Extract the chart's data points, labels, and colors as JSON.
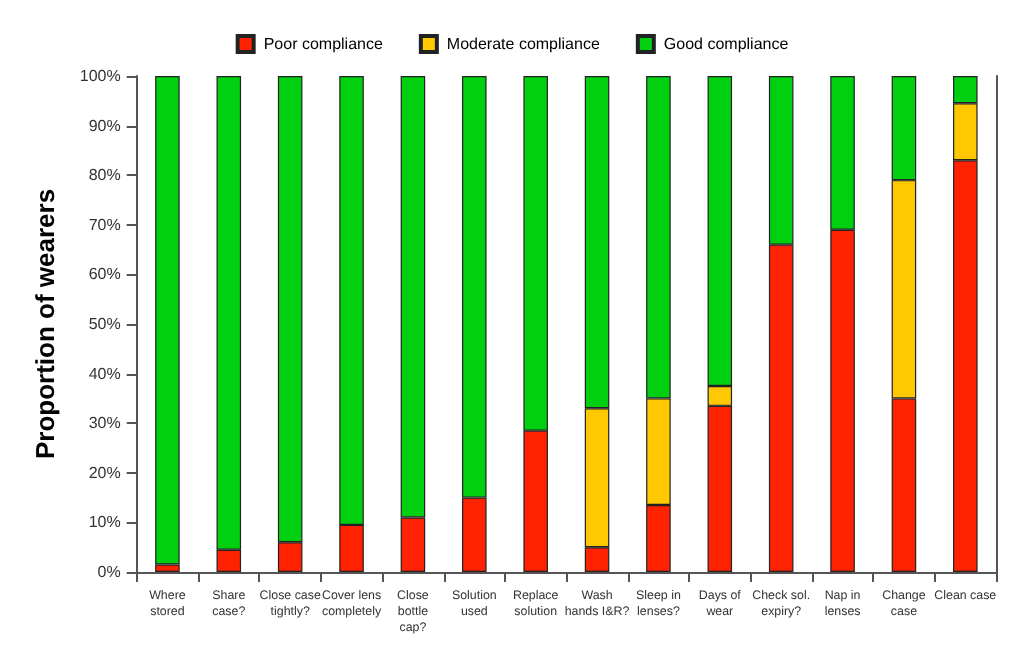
{
  "chart_data": {
    "type": "bar",
    "stacked": true,
    "ylabel": "Proportion of wearers",
    "legend": "top",
    "grid": false,
    "categories": [
      "Where\nstored",
      "Share\ncase?",
      "Close case\ntightly?",
      "Cover lens\ncompletely",
      "Close\nbottle\ncap?",
      "Solution\nused",
      "Replace\nsolution",
      "Wash\nhands I&R?",
      "Sleep in\nlenses?",
      "Days of\nwear",
      "Check sol.\nexpiry?",
      "Nap in\nlenses",
      "Change\ncase",
      "Clean case"
    ],
    "series": [
      {
        "name": "Poor compliance",
        "color": "#ff2200",
        "values": [
          1.5,
          4.5,
          6,
          9.5,
          11,
          15,
          28.5,
          5,
          13.5,
          33.5,
          66,
          69,
          35,
          83
        ]
      },
      {
        "name": "Moderate compliance",
        "color": "#ffc800",
        "values": [
          null,
          null,
          null,
          null,
          null,
          null,
          null,
          28,
          21.5,
          4,
          null,
          null,
          44,
          11.5
        ]
      },
      {
        "name": "Good compliance",
        "color": "#00d010",
        "values": [
          98.5,
          95.5,
          94,
          90.5,
          89,
          85,
          71.5,
          67,
          65,
          62.5,
          34,
          31,
          21,
          5.5
        ]
      }
    ],
    "ylim": [
      0,
      100
    ],
    "yticks": [
      {
        "value": 0,
        "label": "0%"
      },
      {
        "value": 10,
        "label": "10%"
      },
      {
        "value": 20,
        "label": "20%"
      },
      {
        "value": 30,
        "label": "30%"
      },
      {
        "value": 40,
        "label": "40%"
      },
      {
        "value": 50,
        "label": "50%"
      },
      {
        "value": 60,
        "label": "60%"
      },
      {
        "value": 70,
        "label": "70%"
      },
      {
        "value": 80,
        "label": "80%"
      },
      {
        "value": 90,
        "label": "90%"
      },
      {
        "value": 100,
        "label": "100%"
      }
    ]
  }
}
